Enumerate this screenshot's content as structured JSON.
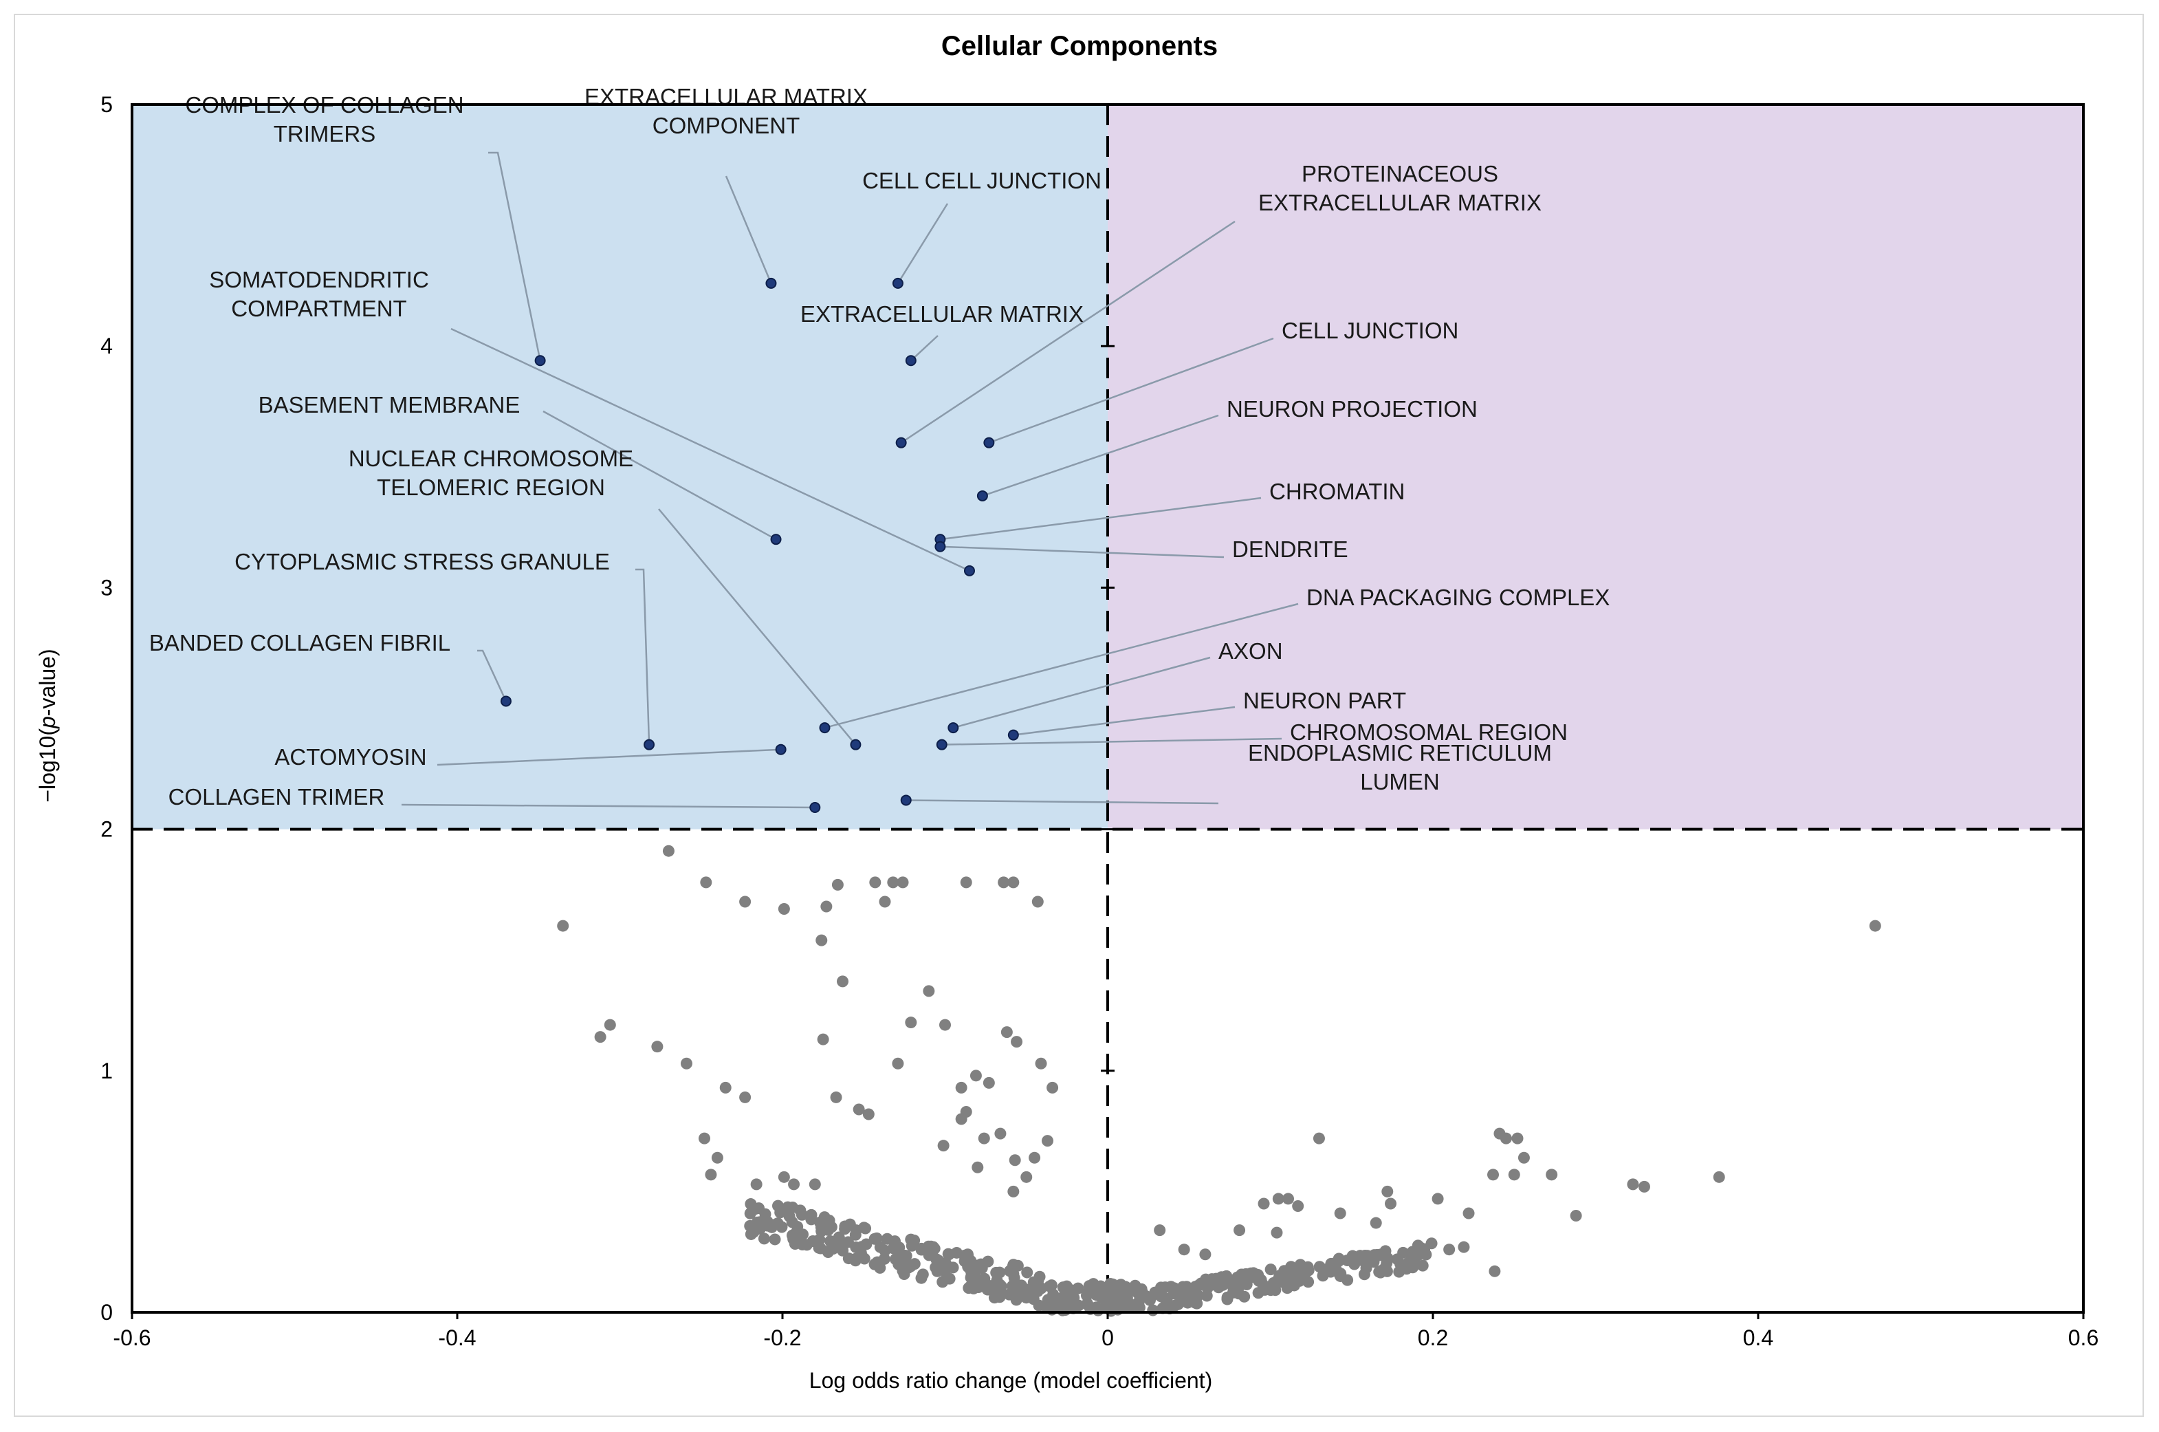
{
  "chart_data": {
    "type": "scatter",
    "title": "Cellular Components",
    "xlabel": "Log odds ratio change (model coefficient)",
    "ylabel_prefix": "−log10(",
    "ylabel_italic": "p",
    "ylabel_suffix": "-value)",
    "xlim": [
      -0.6,
      0.6
    ],
    "ylim": [
      0,
      5
    ],
    "x_ticks": [
      -0.6,
      -0.4,
      -0.2,
      0,
      0.2,
      0.4,
      0.6
    ],
    "x_tick_labels": [
      "-0.6",
      "-0.4",
      "-0.2",
      "0",
      "0.2",
      "0.4",
      "0.6"
    ],
    "y_ticks": [
      0,
      1,
      2,
      3,
      4,
      5
    ],
    "y_tick_labels": [
      "0",
      "1",
      "2",
      "3",
      "4",
      "5"
    ],
    "threshold_y": 2,
    "threshold_x": 0,
    "colors": {
      "left_region": "#cce0f0",
      "right_region": "#e2d5eb",
      "significant_point": "#1f3a7a",
      "background_point": "#808080",
      "leader": "#8a9aaa"
    },
    "significant": [
      {
        "name": "complex-of-collagen-trimers",
        "lines": [
          "COMPLEX OF COLLAGEN",
          "TRIMERS"
        ],
        "x": -0.349,
        "y": 3.94
      },
      {
        "name": "extracellular-matrix-component",
        "lines": [
          "EXTRACELLULAR MATRIX",
          "COMPONENT"
        ],
        "x": -0.207,
        "y": 4.26
      },
      {
        "name": "cell-cell-junction",
        "lines": [
          "CELL CELL JUNCTION"
        ],
        "x": -0.129,
        "y": 4.26
      },
      {
        "name": "proteinaceous-extracellular-matrix",
        "lines": [
          "PROTEINACEOUS",
          "EXTRACELLULAR MATRIX"
        ],
        "x": -0.127,
        "y": 3.6
      },
      {
        "name": "somatodendritic-compartment",
        "lines": [
          "SOMATODENDRITIC",
          "COMPARTMENT"
        ],
        "x": -0.085,
        "y": 3.07
      },
      {
        "name": "extracellular-matrix",
        "lines": [
          "EXTRACELLULAR MATRIX"
        ],
        "x": -0.121,
        "y": 3.94
      },
      {
        "name": "cell-junction",
        "lines": [
          "CELL JUNCTION"
        ],
        "x": -0.073,
        "y": 3.6
      },
      {
        "name": "basement-membrane",
        "lines": [
          "BASEMENT MEMBRANE"
        ],
        "x": -0.204,
        "y": 3.2
      },
      {
        "name": "neuron-projection",
        "lines": [
          "NEURON PROJECTION"
        ],
        "x": -0.077,
        "y": 3.38
      },
      {
        "name": "nuclear-chromosome-telomeric-region",
        "lines": [
          "NUCLEAR CHROMOSOME",
          "TELOMERIC REGION"
        ],
        "x": -0.155,
        "y": 2.35
      },
      {
        "name": "chromatin",
        "lines": [
          "CHROMATIN"
        ],
        "x": -0.103,
        "y": 3.2
      },
      {
        "name": "dendrite",
        "lines": [
          "DENDRITE"
        ],
        "x": -0.103,
        "y": 3.17
      },
      {
        "name": "cytoplasmic-stress-granule",
        "lines": [
          "CYTOPLASMIC STRESS GRANULE"
        ],
        "x": -0.282,
        "y": 2.35
      },
      {
        "name": "dna-packaging-complex",
        "lines": [
          "DNA PACKAGING COMPLEX"
        ],
        "x": -0.174,
        "y": 2.42
      },
      {
        "name": "banded-collagen-fibril",
        "lines": [
          "BANDED COLLAGEN FIBRIL"
        ],
        "x": -0.37,
        "y": 2.53
      },
      {
        "name": "axon",
        "lines": [
          "AXON"
        ],
        "x": -0.095,
        "y": 2.42
      },
      {
        "name": "neuron-part",
        "lines": [
          "NEURON PART"
        ],
        "x": -0.058,
        "y": 2.39
      },
      {
        "name": "actomyosin",
        "lines": [
          "ACTOMYOSIN"
        ],
        "x": -0.201,
        "y": 2.33
      },
      {
        "name": "chromosomal-region",
        "lines": [
          "CHROMOSOMAL REGION"
        ],
        "x": -0.102,
        "y": 2.35
      },
      {
        "name": "collagen-trimer",
        "lines": [
          "COLLAGEN TRIMER"
        ],
        "x": -0.18,
        "y": 2.09
      },
      {
        "name": "endoplasmic-reticulum-lumen",
        "lines": [
          "ENDOPLASMIC RETICULUM",
          "LUMEN"
        ],
        "x": -0.124,
        "y": 2.12
      }
    ],
    "background": [
      [
        -0.27,
        1.91
      ],
      [
        -0.247,
        1.78
      ],
      [
        -0.223,
        1.7
      ],
      [
        -0.199,
        1.67
      ],
      [
        -0.166,
        1.77
      ],
      [
        -0.143,
        1.78
      ],
      [
        -0.137,
        1.7
      ],
      [
        -0.132,
        1.78
      ],
      [
        -0.126,
        1.78
      ],
      [
        -0.087,
        1.78
      ],
      [
        -0.064,
        1.78
      ],
      [
        -0.058,
        1.78
      ],
      [
        -0.043,
        1.7
      ],
      [
        -0.335,
        1.6
      ],
      [
        -0.173,
        1.68
      ],
      [
        -0.176,
        1.54
      ],
      [
        -0.163,
        1.37
      ],
      [
        -0.11,
        1.33
      ],
      [
        -0.312,
        1.14
      ],
      [
        -0.306,
        1.19
      ],
      [
        -0.277,
        1.1
      ],
      [
        -0.259,
        1.03
      ],
      [
        -0.121,
        1.2
      ],
      [
        -0.1,
        1.19
      ],
      [
        -0.062,
        1.16
      ],
      [
        -0.056,
        1.12
      ],
      [
        -0.175,
        1.13
      ],
      [
        -0.129,
        1.03
      ],
      [
        -0.041,
        1.03
      ],
      [
        -0.235,
        0.93
      ],
      [
        -0.223,
        0.89
      ],
      [
        -0.167,
        0.89
      ],
      [
        -0.153,
        0.84
      ],
      [
        -0.147,
        0.82
      ],
      [
        -0.09,
        0.93
      ],
      [
        -0.081,
        0.98
      ],
      [
        -0.073,
        0.95
      ],
      [
        -0.034,
        0.93
      ],
      [
        -0.09,
        0.8
      ],
      [
        -0.087,
        0.83
      ],
      [
        -0.248,
        0.72
      ],
      [
        -0.24,
        0.64
      ],
      [
        -0.244,
        0.57
      ],
      [
        -0.216,
        0.53
      ],
      [
        -0.199,
        0.56
      ],
      [
        -0.193,
        0.53
      ],
      [
        -0.18,
        0.53
      ],
      [
        -0.101,
        0.69
      ],
      [
        -0.066,
        0.74
      ],
      [
        -0.076,
        0.72
      ],
      [
        -0.057,
        0.63
      ],
      [
        -0.045,
        0.64
      ],
      [
        -0.037,
        0.71
      ],
      [
        -0.05,
        0.56
      ],
      [
        -0.058,
        0.5
      ],
      [
        -0.08,
        0.6
      ],
      [
        0.472,
        1.6
      ],
      [
        0.241,
        0.74
      ],
      [
        0.245,
        0.72
      ],
      [
        0.252,
        0.72
      ],
      [
        0.256,
        0.64
      ],
      [
        0.237,
        0.57
      ],
      [
        0.25,
        0.57
      ],
      [
        0.273,
        0.57
      ],
      [
        0.323,
        0.53
      ],
      [
        0.33,
        0.52
      ],
      [
        0.376,
        0.56
      ],
      [
        0.288,
        0.4
      ],
      [
        0.238,
        0.17
      ],
      [
        0.13,
        0.72
      ],
      [
        0.172,
        0.5
      ],
      [
        0.174,
        0.45
      ],
      [
        0.203,
        0.47
      ],
      [
        0.222,
        0.41
      ],
      [
        0.21,
        0.26
      ],
      [
        0.219,
        0.27
      ],
      [
        0.096,
        0.45
      ],
      [
        0.117,
        0.44
      ],
      [
        0.143,
        0.41
      ],
      [
        0.165,
        0.37
      ],
      [
        0.104,
        0.33
      ],
      [
        0.081,
        0.34
      ],
      [
        0.06,
        0.24
      ],
      [
        0.047,
        0.26
      ],
      [
        0.032,
        0.34
      ],
      [
        0.105,
        0.47
      ],
      [
        0.111,
        0.47
      ]
    ]
  }
}
